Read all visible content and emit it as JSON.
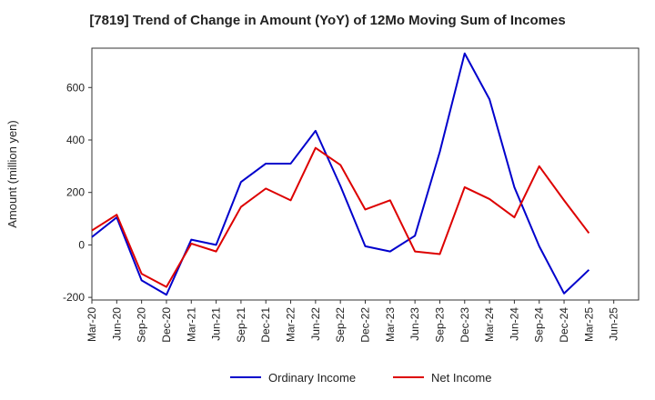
{
  "chart_data": {
    "type": "line",
    "title": "[7819]  Trend of Change in Amount (YoY) of 12Mo Moving Sum of Incomes",
    "xlabel": "",
    "ylabel": "Amount (million yen)",
    "ylim": [
      -210,
      750
    ],
    "yticks": [
      -200,
      0,
      200,
      400,
      600
    ],
    "ytick_labels": [
      "-200",
      "0",
      "200",
      "400",
      "600"
    ],
    "x": [
      "Mar-20",
      "Jun-20",
      "Sep-20",
      "Dec-20",
      "Mar-21",
      "Jun-21",
      "Sep-21",
      "Dec-21",
      "Mar-22",
      "Jun-22",
      "Sep-22",
      "Dec-22",
      "Mar-23",
      "Jun-23",
      "Sep-23",
      "Dec-23",
      "Mar-24",
      "Jun-24",
      "Sep-24",
      "Dec-24",
      "Mar-25",
      "Jun-25"
    ],
    "grid": true,
    "legend_position": "bottom",
    "series": [
      {
        "name": "Ordinary Income",
        "color": "#0000cc",
        "values": [
          30,
          105,
          -135,
          -190,
          20,
          0,
          240,
          310,
          310,
          435,
          225,
          -5,
          -25,
          35,
          355,
          730,
          555,
          220,
          -5,
          -185,
          -95,
          null
        ]
      },
      {
        "name": "Net Income",
        "color": "#dd0000",
        "values": [
          55,
          115,
          -110,
          -160,
          5,
          -25,
          145,
          215,
          170,
          370,
          305,
          135,
          170,
          -25,
          -35,
          220,
          175,
          105,
          300,
          170,
          45,
          null
        ]
      }
    ]
  }
}
